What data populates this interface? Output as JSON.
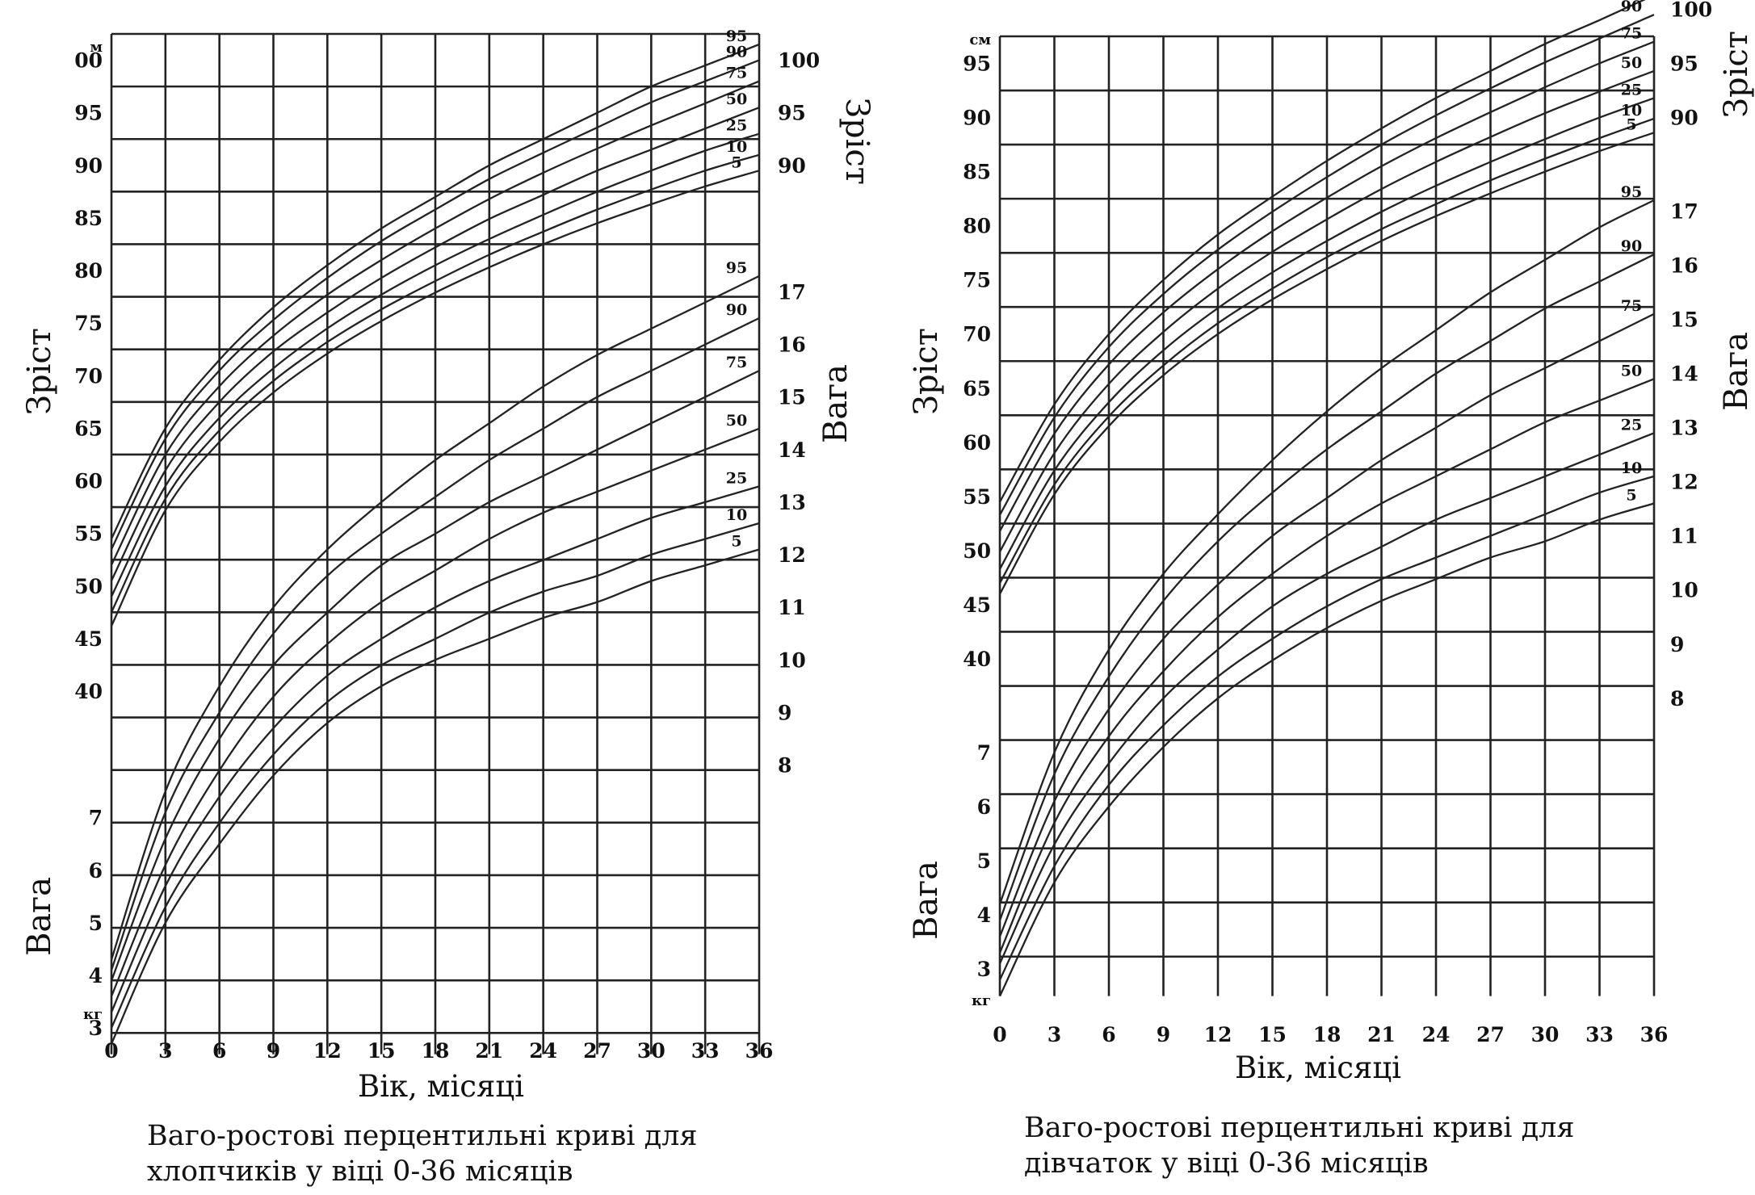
{
  "chart_data": [
    {
      "type": "line",
      "title": "Ваго-ростові перцентильні криві для хлопчиків у віці 0-36 місяців",
      "xlabel": "Вік, місяці",
      "ylabel_height": "Зріст",
      "ylabel_weight": "Вага",
      "height_unit": "м",
      "weight_unit": "кг",
      "x_ticks": [
        0,
        3,
        6,
        9,
        12,
        15,
        18,
        21,
        24,
        27,
        30,
        33,
        36
      ],
      "height_ticks_left": [
        40,
        45,
        50,
        55,
        60,
        65,
        70,
        75,
        80,
        85,
        90,
        95,
        "00"
      ],
      "height_ticks_right": [
        90,
        95,
        100
      ],
      "weight_ticks_left": [
        3,
        4,
        5,
        6,
        7
      ],
      "weight_ticks_right": [
        8,
        9,
        10,
        11,
        12,
        13,
        14,
        15,
        16,
        17
      ],
      "xlim": [
        0,
        36
      ],
      "height_series": [
        {
          "name": "95",
          "x": [
            0,
            3,
            6,
            9,
            12,
            15,
            18,
            21,
            24,
            27,
            30,
            33,
            36
          ],
          "y": [
            54.5,
            65,
            71.5,
            76.5,
            80.5,
            84,
            87,
            90,
            92.5,
            95,
            97.5,
            99.5,
            101.5
          ]
        },
        {
          "name": "90",
          "x": [
            0,
            3,
            6,
            9,
            12,
            15,
            18,
            21,
            24,
            27,
            30,
            33,
            36
          ],
          "y": [
            53.5,
            64,
            70.5,
            75.3,
            79.3,
            82.8,
            85.8,
            88.7,
            91.2,
            93.6,
            96,
            98,
            100
          ]
        },
        {
          "name": "75",
          "x": [
            0,
            3,
            6,
            9,
            12,
            15,
            18,
            21,
            24,
            27,
            30,
            33,
            36
          ],
          "y": [
            52,
            62.5,
            69,
            73.8,
            77.7,
            81,
            84,
            86.8,
            89.3,
            91.6,
            93.8,
            95.9,
            98
          ]
        },
        {
          "name": "50",
          "x": [
            0,
            3,
            6,
            9,
            12,
            15,
            18,
            21,
            24,
            27,
            30,
            33,
            36
          ],
          "y": [
            50.5,
            61,
            67.5,
            72.3,
            76,
            79.3,
            82.2,
            84.9,
            87.2,
            89.5,
            91.5,
            93.5,
            95.5
          ]
        },
        {
          "name": "25",
          "x": [
            0,
            3,
            6,
            9,
            12,
            15,
            18,
            21,
            24,
            27,
            30,
            33,
            36
          ],
          "y": [
            49,
            59.5,
            66,
            70.7,
            74.5,
            77.7,
            80.5,
            83,
            85.3,
            87.5,
            89.5,
            91.4,
            93
          ]
        },
        {
          "name": "10",
          "x": [
            0,
            3,
            6,
            9,
            12,
            15,
            18,
            21,
            24,
            27,
            30,
            33,
            36
          ],
          "y": [
            47.5,
            58.3,
            64.8,
            69.5,
            73.2,
            76.3,
            79,
            81.5,
            83.7,
            85.8,
            87.7,
            89.5,
            91
          ]
        },
        {
          "name": "5",
          "x": [
            0,
            3,
            6,
            9,
            12,
            15,
            18,
            21,
            24,
            27,
            30,
            33,
            36
          ],
          "y": [
            46.2,
            57.2,
            63.7,
            68.4,
            72.1,
            75.2,
            77.9,
            80.3,
            82.5,
            84.5,
            86.3,
            88,
            89.5
          ]
        }
      ],
      "weight_series": [
        {
          "name": "95",
          "x": [
            0,
            3,
            6,
            9,
            12,
            15,
            18,
            21,
            24,
            27,
            30,
            33,
            36
          ],
          "y": [
            4.3,
            7.5,
            9.5,
            11,
            12.1,
            13,
            13.8,
            14.5,
            15.2,
            15.8,
            16.3,
            16.8,
            17.3
          ]
        },
        {
          "name": "90",
          "x": [
            0,
            3,
            6,
            9,
            12,
            15,
            18,
            21,
            24,
            27,
            30,
            33,
            36
          ],
          "y": [
            4.1,
            7.1,
            9.0,
            10.5,
            11.6,
            12.4,
            13.1,
            13.8,
            14.4,
            15,
            15.5,
            16,
            16.5
          ]
        },
        {
          "name": "75",
          "x": [
            0,
            3,
            6,
            9,
            12,
            15,
            18,
            21,
            24,
            27,
            30,
            33,
            36
          ],
          "y": [
            3.9,
            6.6,
            8.5,
            9.9,
            10.9,
            11.8,
            12.4,
            13,
            13.5,
            14,
            14.5,
            15,
            15.5
          ]
        },
        {
          "name": "50",
          "x": [
            0,
            3,
            6,
            9,
            12,
            15,
            18,
            21,
            24,
            27,
            30,
            33,
            36
          ],
          "y": [
            3.6,
            6.1,
            7.9,
            9.3,
            10.3,
            11.1,
            11.7,
            12.3,
            12.8,
            13.2,
            13.6,
            14,
            14.4
          ]
        },
        {
          "name": "25",
          "x": [
            0,
            3,
            6,
            9,
            12,
            15,
            18,
            21,
            24,
            27,
            30,
            33,
            36
          ],
          "y": [
            3.3,
            5.7,
            7.4,
            8.7,
            9.7,
            10.4,
            11,
            11.5,
            11.9,
            12.3,
            12.7,
            13,
            13.3
          ]
        },
        {
          "name": "10",
          "x": [
            0,
            3,
            6,
            9,
            12,
            15,
            18,
            21,
            24,
            27,
            30,
            33,
            36
          ],
          "y": [
            3.0,
            5.3,
            6.9,
            8.2,
            9.2,
            9.9,
            10.4,
            10.9,
            11.3,
            11.6,
            12,
            12.3,
            12.6
          ]
        },
        {
          "name": "5",
          "x": [
            0,
            3,
            6,
            9,
            12,
            15,
            18,
            21,
            24,
            27,
            30,
            33,
            36
          ],
          "y": [
            2.7,
            5.0,
            6.5,
            7.8,
            8.8,
            9.5,
            10.0,
            10.4,
            10.8,
            11.1,
            11.5,
            11.8,
            12.1
          ]
        }
      ],
      "grid": true
    },
    {
      "type": "line",
      "title": "Ваго-ростові перцентильні криві для дівчаток у віці 0-36 місяців",
      "xlabel": "Вік, місяці",
      "ylabel_height": "Зріст",
      "ylabel_weight": "Вага",
      "height_unit": "см",
      "weight_unit": "кг",
      "x_ticks": [
        0,
        3,
        6,
        9,
        12,
        15,
        18,
        21,
        24,
        27,
        30,
        33,
        36
      ],
      "height_ticks_left": [
        40,
        45,
        50,
        55,
        60,
        65,
        70,
        75,
        80,
        85,
        90,
        95
      ],
      "height_ticks_right": [
        90,
        95,
        100
      ],
      "weight_ticks_left": [
        3,
        4,
        5,
        6,
        7
      ],
      "weight_ticks_right": [
        8,
        9,
        10,
        11,
        12,
        13,
        14,
        15,
        16,
        17
      ],
      "xlim": [
        0,
        36
      ],
      "height_series": [
        {
          "name": "95",
          "x": [
            0,
            3,
            6,
            9,
            12,
            15,
            18,
            21,
            24,
            27,
            30,
            33,
            36
          ],
          "y": [
            54.5,
            63.5,
            70,
            75,
            79.2,
            82.7,
            86,
            89,
            91.8,
            94.3,
            96.8,
            99,
            101.3
          ]
        },
        {
          "name": "90",
          "x": [
            0,
            3,
            6,
            9,
            12,
            15,
            18,
            21,
            24,
            27,
            30,
            33,
            36
          ],
          "y": [
            53.3,
            62.3,
            68.8,
            73.7,
            77.8,
            81.3,
            84.5,
            87.5,
            90.2,
            92.7,
            95.1,
            97.3,
            99.5
          ]
        },
        {
          "name": "75",
          "x": [
            0,
            3,
            6,
            9,
            12,
            15,
            18,
            21,
            24,
            27,
            30,
            33,
            36
          ],
          "y": [
            51.8,
            60.8,
            67.2,
            72,
            76,
            79.5,
            82.6,
            85.5,
            88.1,
            90.5,
            92.8,
            95,
            97
          ]
        },
        {
          "name": "50",
          "x": [
            0,
            3,
            6,
            9,
            12,
            15,
            18,
            21,
            24,
            27,
            30,
            33,
            36
          ],
          "y": [
            49.9,
            59,
            65.4,
            70.2,
            74.2,
            77.6,
            80.6,
            83.4,
            85.9,
            88.2,
            90.4,
            92.4,
            94.3
          ]
        },
        {
          "name": "25",
          "x": [
            0,
            3,
            6,
            9,
            12,
            15,
            18,
            21,
            24,
            27,
            30,
            33,
            36
          ],
          "y": [
            48.3,
            57.4,
            63.7,
            68.5,
            72.4,
            75.7,
            78.6,
            81.3,
            83.7,
            85.9,
            88,
            90,
            91.8
          ]
        },
        {
          "name": "10",
          "x": [
            0,
            3,
            6,
            9,
            12,
            15,
            18,
            21,
            24,
            27,
            30,
            33,
            36
          ],
          "y": [
            47,
            56.1,
            62.4,
            67.1,
            71,
            74.2,
            77.1,
            79.7,
            82,
            84.2,
            86.2,
            88.1,
            89.9
          ]
        },
        {
          "name": "5",
          "x": [
            0,
            3,
            6,
            9,
            12,
            15,
            18,
            21,
            24,
            27,
            30,
            33,
            36
          ],
          "y": [
            46,
            55.2,
            61.5,
            66.2,
            70,
            73.2,
            76,
            78.6,
            80.9,
            83,
            85,
            86.9,
            88.6
          ]
        }
      ],
      "weight_series": [
        {
          "name": "95",
          "x": [
            0,
            3,
            6,
            9,
            12,
            15,
            18,
            21,
            24,
            27,
            30,
            33,
            36
          ],
          "y": [
            4.2,
            7.0,
            8.9,
            10.3,
            11.4,
            12.4,
            13.3,
            14.1,
            14.8,
            15.5,
            16.1,
            16.7,
            17.2
          ]
        },
        {
          "name": "90",
          "x": [
            0,
            3,
            6,
            9,
            12,
            15,
            18,
            21,
            24,
            27,
            30,
            33,
            36
          ],
          "y": [
            3.9,
            6.6,
            8.4,
            9.8,
            10.9,
            11.8,
            12.6,
            13.3,
            14,
            14.6,
            15.2,
            15.7,
            16.2
          ]
        },
        {
          "name": "75",
          "x": [
            0,
            3,
            6,
            9,
            12,
            15,
            18,
            21,
            24,
            27,
            30,
            33,
            36
          ],
          "y": [
            3.6,
            6.1,
            7.8,
            9.1,
            10.1,
            11,
            11.7,
            12.4,
            13,
            13.6,
            14.1,
            14.6,
            15.1
          ]
        },
        {
          "name": "50",
          "x": [
            0,
            3,
            6,
            9,
            12,
            15,
            18,
            21,
            24,
            27,
            30,
            33,
            36
          ],
          "y": [
            3.3,
            5.7,
            7.3,
            8.5,
            9.5,
            10.3,
            11,
            11.6,
            12.1,
            12.6,
            13.1,
            13.5,
            13.9
          ]
        },
        {
          "name": "25",
          "x": [
            0,
            3,
            6,
            9,
            12,
            15,
            18,
            21,
            24,
            27,
            30,
            33,
            36
          ],
          "y": [
            3.1,
            5.3,
            6.8,
            8.0,
            8.9,
            9.7,
            10.3,
            10.8,
            11.3,
            11.7,
            12.1,
            12.5,
            12.9
          ]
        },
        {
          "name": "10",
          "x": [
            0,
            3,
            6,
            9,
            12,
            15,
            18,
            21,
            24,
            27,
            30,
            33,
            36
          ],
          "y": [
            2.8,
            4.9,
            6.4,
            7.5,
            8.4,
            9.1,
            9.7,
            10.2,
            10.6,
            11,
            11.4,
            11.8,
            12.1
          ]
        },
        {
          "name": "5",
          "x": [
            0,
            3,
            6,
            9,
            12,
            15,
            18,
            21,
            24,
            27,
            30,
            33,
            36
          ],
          "y": [
            2.5,
            4.6,
            6.0,
            7.1,
            8.0,
            8.7,
            9.3,
            9.8,
            10.2,
            10.6,
            10.9,
            11.3,
            11.6
          ]
        }
      ],
      "grid": true
    }
  ],
  "captions": [
    {
      "line1": "Ваго-ростові перцентильні криві для",
      "line2": "хлопчиків у віці 0-36 місяців"
    },
    {
      "line1": "Ваго-ростові перцентильні криві для",
      "line2": "дівчаток у віці 0-36 місяців"
    }
  ]
}
